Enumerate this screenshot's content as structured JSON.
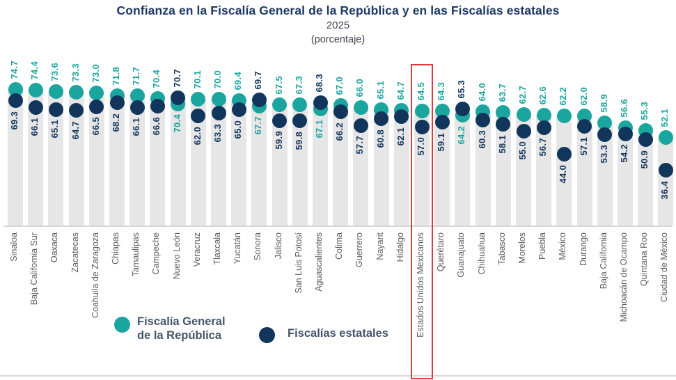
{
  "title": "Confianza en la Fiscalía General de la República y en las Fiscalías estatales",
  "subtitle": "2025",
  "unit_label": "(porcentaje)",
  "colors": {
    "fgr": "#1ba59f",
    "estatales": "#12355b",
    "bar": "#e6e6e7",
    "title": "#1f3864",
    "legend_text": "#44546a",
    "category_label": "#5b5c5e",
    "highlight_box": "#df3a3d",
    "axis_line": "#d6d6d6"
  },
  "legend": [
    {
      "line1": "Fiscalía General",
      "line2": "de la República"
    },
    {
      "line1": "Fiscalías estatales",
      "line2": ""
    }
  ],
  "highlighted_category": "Estados Unidos Mexicanos",
  "chart_data": {
    "type": "scatter",
    "subtype": "dot-column-comparison",
    "title": "Confianza en la Fiscalía General de la República y en las Fiscalías estatales",
    "subtitle": "2025 (porcentaje)",
    "xlabel": "",
    "ylabel": "porcentaje",
    "ylim": [
      30,
      80
    ],
    "grid": false,
    "legend_position": "bottom",
    "categories": [
      "Sinaloa",
      "Baja California Sur",
      "Oaxaca",
      "Zacatecas",
      "Coahuila de Zaragoza",
      "Chiapas",
      "Tamaulipas",
      "Campeche",
      "Nuevo León",
      "Veracruz",
      "Tlaxcala",
      "Yucatán",
      "Sonora",
      "Jalisco",
      "San Luis Potosí",
      "Aguascalientes",
      "Colima",
      "Guerrero",
      "Nayarit",
      "Hidalgo",
      "Estados Unidos Mexicanos",
      "Querétaro",
      "Guanajuato",
      "Chihuahua",
      "Tabasco",
      "Morelos",
      "Puebla",
      "México",
      "Durango",
      "Baja California",
      "Michoacán de Ocampo",
      "Quintana Roo",
      "Ciudad de México"
    ],
    "series": [
      {
        "name": "Fiscalía General de la República",
        "color": "#1ba59f",
        "values": [
          74.7,
          74.4,
          73.6,
          73.3,
          73.0,
          71.8,
          71.7,
          70.4,
          70.4,
          70.1,
          70.0,
          69.4,
          67.7,
          67.5,
          67.3,
          67.1,
          67.0,
          66.0,
          65.1,
          64.7,
          64.5,
          64.3,
          64.2,
          64.0,
          63.7,
          62.7,
          62.6,
          62.2,
          62.0,
          58.9,
          56.6,
          55.3,
          52.1
        ]
      },
      {
        "name": "Fiscalías estatales",
        "color": "#12355b",
        "values": [
          69.3,
          66.1,
          65.1,
          64.7,
          66.5,
          68.2,
          66.1,
          66.6,
          70.7,
          62.0,
          63.3,
          65.0,
          69.7,
          59.9,
          59.8,
          68.3,
          66.2,
          57.7,
          60.8,
          62.1,
          57.0,
          59.1,
          65.3,
          60.3,
          58.1,
          55.0,
          56.7,
          44.0,
          57.1,
          53.3,
          54.2,
          50.9,
          36.4
        ]
      }
    ]
  }
}
